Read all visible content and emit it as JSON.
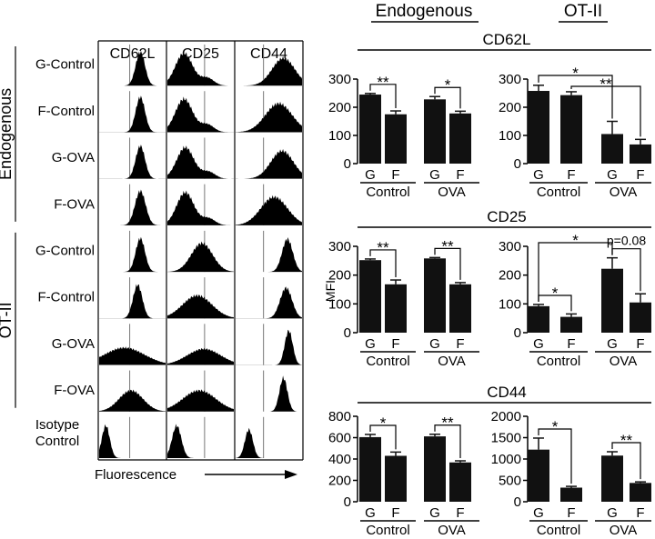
{
  "headers": {
    "endogenous": "Endogenous",
    "otii": "OT-II"
  },
  "histograms": {
    "columns": [
      "CD62L",
      "CD25",
      "CD44"
    ],
    "rows": [
      "G-Control",
      "F-Control",
      "G-OVA",
      "F-OVA",
      "G-Control",
      "F-Control",
      "G-OVA",
      "F-OVA",
      "Isotype Control"
    ],
    "groups": [
      "Endogenous",
      "OT-II"
    ],
    "xlabel": "Fluorescence"
  },
  "ylabel": "MFI",
  "chart_data": [
    {
      "type": "bar",
      "section": "CD62L",
      "panel": "Endogenous",
      "categories": [
        "G",
        "F",
        "G",
        "F"
      ],
      "groups": [
        "Control",
        "OVA"
      ],
      "values": [
        245,
        175,
        228,
        178
      ],
      "errors": [
        4,
        12,
        10,
        8
      ],
      "ylim": [
        0,
        300
      ],
      "yticks": [
        0,
        100,
        200,
        300
      ],
      "significance": [
        {
          "from": 0,
          "to": 1,
          "label": "**"
        },
        {
          "from": 2,
          "to": 3,
          "label": "*"
        }
      ]
    },
    {
      "type": "bar",
      "section": "CD62L",
      "panel": "OT-II",
      "categories": [
        "G",
        "F",
        "G",
        "F"
      ],
      "groups": [
        "Control",
        "OVA"
      ],
      "values": [
        258,
        243,
        105,
        68
      ],
      "errors": [
        20,
        12,
        45,
        18
      ],
      "ylim": [
        0,
        300
      ],
      "yticks": [
        0,
        100,
        200,
        300
      ],
      "significance": [
        {
          "from": 0,
          "to": 2,
          "label": "*"
        },
        {
          "from": 1,
          "to": 3,
          "label": "**"
        }
      ]
    },
    {
      "type": "bar",
      "section": "CD25",
      "panel": "Endogenous",
      "categories": [
        "G",
        "F",
        "G",
        "F"
      ],
      "groups": [
        "Control",
        "OVA"
      ],
      "values": [
        252,
        168,
        258,
        168
      ],
      "errors": [
        4,
        15,
        3,
        6
      ],
      "ylim": [
        0,
        300
      ],
      "yticks": [
        0,
        100,
        200,
        300
      ],
      "significance": [
        {
          "from": 0,
          "to": 1,
          "label": "**"
        },
        {
          "from": 2,
          "to": 3,
          "label": "**"
        }
      ]
    },
    {
      "type": "bar",
      "section": "CD25",
      "panel": "OT-II",
      "categories": [
        "G",
        "F",
        "G",
        "F"
      ],
      "groups": [
        "Control",
        "OVA"
      ],
      "values": [
        92,
        55,
        222,
        105
      ],
      "errors": [
        6,
        10,
        38,
        30
      ],
      "ylim": [
        0,
        300
      ],
      "yticks": [
        0,
        100,
        200,
        300
      ],
      "significance": [
        {
          "from": 0,
          "to": 1,
          "label": "*"
        },
        {
          "from": 0,
          "to": 2,
          "label": "*"
        },
        {
          "from": 2,
          "to": 3,
          "label": "p=0.08"
        }
      ]
    },
    {
      "type": "bar",
      "section": "CD44",
      "panel": "Endogenous",
      "categories": [
        "G",
        "F",
        "G",
        "F"
      ],
      "groups": [
        "Control",
        "OVA"
      ],
      "values": [
        605,
        430,
        612,
        368
      ],
      "errors": [
        25,
        35,
        20,
        15
      ],
      "ylim": [
        0,
        800
      ],
      "yticks": [
        0,
        200,
        400,
        600,
        800
      ],
      "significance": [
        {
          "from": 0,
          "to": 1,
          "label": "*"
        },
        {
          "from": 2,
          "to": 3,
          "label": "**"
        }
      ]
    },
    {
      "type": "bar",
      "section": "CD44",
      "panel": "OT-II",
      "categories": [
        "G",
        "F",
        "G",
        "F"
      ],
      "groups": [
        "Control",
        "OVA"
      ],
      "values": [
        1220,
        330,
        1080,
        440
      ],
      "errors": [
        270,
        30,
        90,
        25
      ],
      "ylim": [
        0,
        2000
      ],
      "yticks": [
        0,
        500,
        1000,
        1500,
        2000
      ],
      "significance": [
        {
          "from": 0,
          "to": 1,
          "label": "*"
        },
        {
          "from": 2,
          "to": 3,
          "label": "**"
        }
      ]
    }
  ]
}
